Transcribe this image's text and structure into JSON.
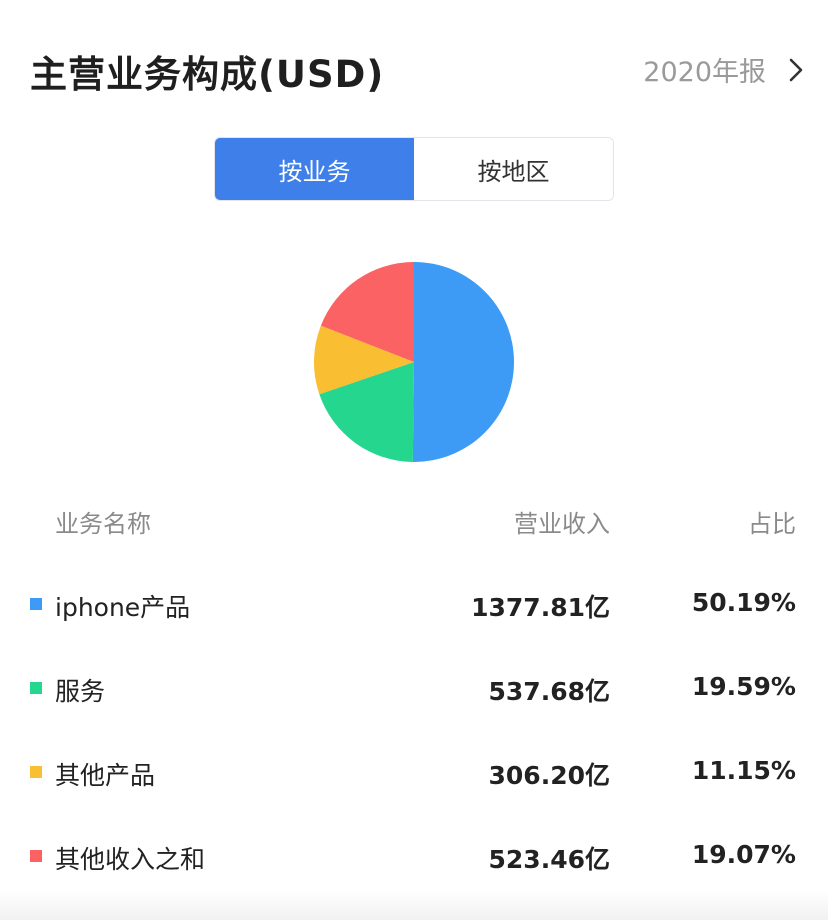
{
  "header": {
    "title": "主营业务构成(USD)",
    "report_label": "2020年报"
  },
  "tabs": [
    {
      "label": "按业务",
      "active": true
    },
    {
      "label": "按地区",
      "active": false
    }
  ],
  "table": {
    "headers": {
      "name": "业务名称",
      "revenue": "营业收入",
      "share": "占比"
    }
  },
  "colors": {
    "accent": "#3e7fea",
    "series": [
      "#3d9bf5",
      "#25d68e",
      "#f9be32",
      "#fb6264"
    ]
  },
  "chart_data": {
    "type": "pie",
    "categories": [
      "iphone产品",
      "服务",
      "其他产品",
      "其他收入之和"
    ],
    "values": [
      50.19,
      19.59,
      11.15,
      19.07
    ],
    "revenue_labels": [
      "1377.81亿",
      "537.68亿",
      "306.20亿",
      "523.46亿"
    ],
    "share_labels": [
      "50.19%",
      "19.59%",
      "11.15%",
      "19.07%"
    ],
    "title": "主营业务构成(USD)"
  }
}
